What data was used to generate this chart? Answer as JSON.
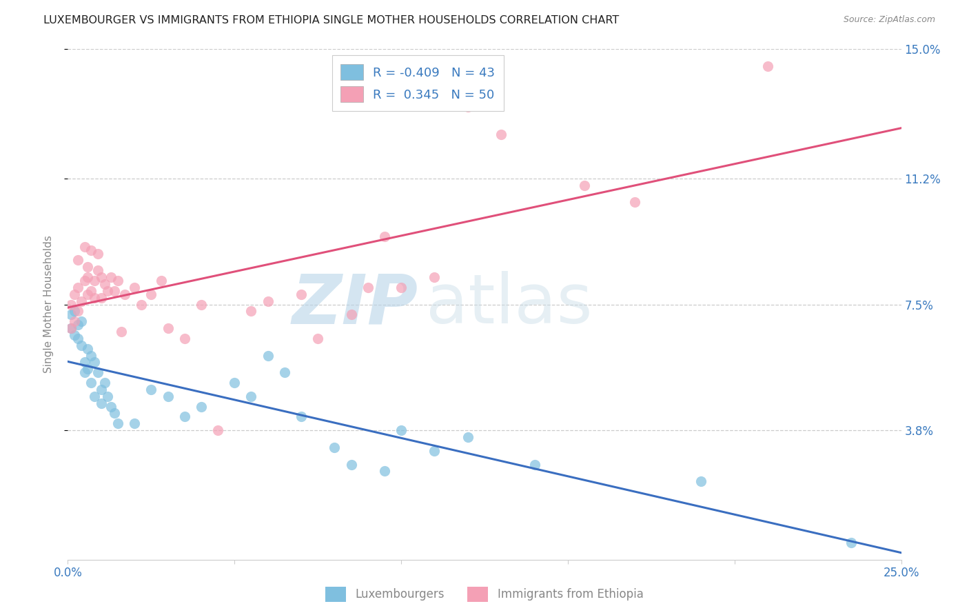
{
  "title": "LUXEMBOURGER VS IMMIGRANTS FROM ETHIOPIA SINGLE MOTHER HOUSEHOLDS CORRELATION CHART",
  "source": "Source: ZipAtlas.com",
  "ylabel": "Single Mother Households",
  "xlim": [
    0.0,
    0.25
  ],
  "ylim": [
    0.0,
    0.15
  ],
  "yticks": [
    0.038,
    0.075,
    0.112,
    0.15
  ],
  "ytick_labels": [
    "3.8%",
    "7.5%",
    "11.2%",
    "15.0%"
  ],
  "xticks": [
    0.0,
    0.05,
    0.1,
    0.15,
    0.2,
    0.25
  ],
  "xtick_labels": [
    "0.0%",
    "",
    "",
    "",
    "",
    "25.0%"
  ],
  "blue_color": "#7fbfdf",
  "pink_color": "#f4a0b5",
  "blue_line_color": "#3a6ec0",
  "pink_line_color": "#e0507a",
  "legend_r_blue": "-0.409",
  "legend_n_blue": "43",
  "legend_r_pink": "0.345",
  "legend_n_pink": "50",
  "legend_label_blue": "Luxembourgers",
  "legend_label_pink": "Immigrants from Ethiopia",
  "watermark_zip": "ZIP",
  "watermark_atlas": "atlas",
  "blue_scatter_x": [
    0.001,
    0.001,
    0.002,
    0.002,
    0.003,
    0.003,
    0.004,
    0.004,
    0.005,
    0.005,
    0.006,
    0.006,
    0.007,
    0.007,
    0.008,
    0.008,
    0.009,
    0.01,
    0.01,
    0.011,
    0.012,
    0.013,
    0.014,
    0.015,
    0.02,
    0.025,
    0.03,
    0.035,
    0.04,
    0.05,
    0.055,
    0.06,
    0.065,
    0.07,
    0.08,
    0.085,
    0.095,
    0.1,
    0.11,
    0.12,
    0.14,
    0.19,
    0.235
  ],
  "blue_scatter_y": [
    0.068,
    0.072,
    0.066,
    0.073,
    0.069,
    0.065,
    0.07,
    0.063,
    0.058,
    0.055,
    0.062,
    0.056,
    0.06,
    0.052,
    0.058,
    0.048,
    0.055,
    0.05,
    0.046,
    0.052,
    0.048,
    0.045,
    0.043,
    0.04,
    0.04,
    0.05,
    0.048,
    0.042,
    0.045,
    0.052,
    0.048,
    0.06,
    0.055,
    0.042,
    0.033,
    0.028,
    0.026,
    0.038,
    0.032,
    0.036,
    0.028,
    0.023,
    0.005
  ],
  "pink_scatter_x": [
    0.001,
    0.001,
    0.002,
    0.002,
    0.003,
    0.003,
    0.003,
    0.004,
    0.005,
    0.005,
    0.006,
    0.006,
    0.006,
    0.007,
    0.007,
    0.008,
    0.008,
    0.009,
    0.009,
    0.01,
    0.01,
    0.011,
    0.012,
    0.013,
    0.014,
    0.015,
    0.016,
    0.017,
    0.02,
    0.022,
    0.025,
    0.028,
    0.03,
    0.035,
    0.04,
    0.045,
    0.055,
    0.06,
    0.07,
    0.075,
    0.085,
    0.09,
    0.095,
    0.1,
    0.11,
    0.12,
    0.13,
    0.155,
    0.17,
    0.21
  ],
  "pink_scatter_y": [
    0.068,
    0.075,
    0.07,
    0.078,
    0.073,
    0.08,
    0.088,
    0.076,
    0.082,
    0.092,
    0.086,
    0.078,
    0.083,
    0.079,
    0.091,
    0.082,
    0.077,
    0.085,
    0.09,
    0.083,
    0.077,
    0.081,
    0.079,
    0.083,
    0.079,
    0.082,
    0.067,
    0.078,
    0.08,
    0.075,
    0.078,
    0.082,
    0.068,
    0.065,
    0.075,
    0.038,
    0.073,
    0.076,
    0.078,
    0.065,
    0.072,
    0.08,
    0.095,
    0.08,
    0.083,
    0.133,
    0.125,
    0.11,
    0.105,
    0.145
  ]
}
